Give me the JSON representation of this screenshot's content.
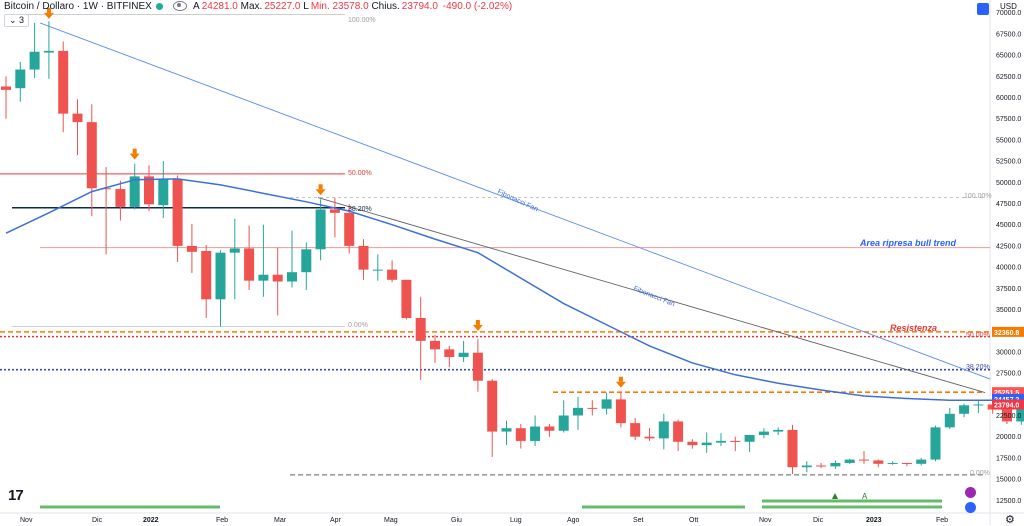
{
  "header": {
    "symbol": "Bitcoin / Dollaro · 1W · BITFINEX",
    "open_label": "A",
    "open": "24281.0",
    "high_label": "Max.",
    "high": "25227.0",
    "low_label": "L",
    "low": "Min. 23578.0",
    "close_label": "Chius.",
    "close": "23794.0",
    "change": "-490.0 (-2.02%)",
    "indicator_badge": "3"
  },
  "axis_unit": "USD",
  "price_axis_ticks": [
    "70000.0",
    "67500.0",
    "65000.0",
    "62500.0",
    "60000.0",
    "57500.0",
    "55000.0",
    "52500.0",
    "50000.0",
    "47500.0",
    "45000.0",
    "42500.0",
    "40000.0",
    "37500.0",
    "35000.0",
    "32500.0",
    "30000.0",
    "27500.0",
    "25000.0",
    "22500.0",
    "20000.0",
    "17500.0",
    "15000.0",
    "12500.0"
  ],
  "time_axis_labels": [
    "Nov",
    "Dic",
    "2022",
    "Feb",
    "Mar",
    "Apr",
    "Mag",
    "Giu",
    "Lug",
    "Ago",
    "Set",
    "Ott",
    "Nov",
    "Dic",
    "2023",
    "Feb"
  ],
  "price_badges": [
    {
      "text": "32360.8",
      "value": 32360.8,
      "color": "#f57c00"
    },
    {
      "text": "25251.5",
      "value": 25251.5,
      "color": "#ff5252"
    },
    {
      "text": "24457.2",
      "value": 24457.2,
      "color": "#2962ff"
    },
    {
      "text": "23794.0",
      "value": 23794.0,
      "color": "#f23645"
    }
  ],
  "annotations": {
    "fib_fan_1": "Fibonacci Fan",
    "fib_fan_2": "Fibonacci Fan",
    "area_ripresa": "Area ripresa bull trend",
    "resistenza": "Resistenza",
    "fib1_100": "100.00%",
    "fib1_50": "50.00%",
    "fib1_38": "38.20%",
    "fib1_0": "0.00%",
    "fib2_100": "100.00%",
    "fib2_50": "50.00%",
    "fib2_38": "38.20%",
    "fib2_0": "0.00%",
    "marker_a": "A"
  },
  "colors": {
    "up": "#26a69a",
    "down": "#ef5350",
    "ma": "#3d6fdc",
    "fan": "#5b8def",
    "resistance": "#f57c00",
    "green_bar": "#66bb6a"
  },
  "chart_data": {
    "type": "candlestick",
    "interval": "1W",
    "x_start": "2021-10-25",
    "x_end": "2023-02-20",
    "ylim": [
      11000,
      71500
    ],
    "candles": [
      {
        "o": 61300,
        "h": 62500,
        "l": 57500,
        "c": 60900
      },
      {
        "o": 61100,
        "h": 64200,
        "l": 59500,
        "c": 63300
      },
      {
        "o": 63300,
        "h": 68800,
        "l": 62300,
        "c": 65400
      },
      {
        "o": 65300,
        "h": 69000,
        "l": 62200,
        "c": 65500
      },
      {
        "o": 65500,
        "h": 66600,
        "l": 55900,
        "c": 58100
      },
      {
        "o": 58100,
        "h": 59800,
        "l": 53200,
        "c": 57100
      },
      {
        "o": 57100,
        "h": 59200,
        "l": 46000,
        "c": 49300
      },
      {
        "o": 49300,
        "h": 51800,
        "l": 41500,
        "c": 49200
      },
      {
        "o": 49200,
        "h": 50200,
        "l": 45500,
        "c": 47100
      },
      {
        "o": 47100,
        "h": 52200,
        "l": 46800,
        "c": 50700
      },
      {
        "o": 50700,
        "h": 52000,
        "l": 46600,
        "c": 47400
      },
      {
        "o": 47300,
        "h": 52500,
        "l": 45800,
        "c": 50400
      },
      {
        "o": 50400,
        "h": 50800,
        "l": 40600,
        "c": 42500
      },
      {
        "o": 42500,
        "h": 45100,
        "l": 39300,
        "c": 41800
      },
      {
        "o": 41900,
        "h": 42600,
        "l": 34000,
        "c": 36200
      },
      {
        "o": 36200,
        "h": 42000,
        "l": 33000,
        "c": 41700
      },
      {
        "o": 41700,
        "h": 45700,
        "l": 36200,
        "c": 42200
      },
      {
        "o": 42200,
        "h": 44900,
        "l": 37300,
        "c": 38400
      },
      {
        "o": 38400,
        "h": 45000,
        "l": 36500,
        "c": 39100
      },
      {
        "o": 39100,
        "h": 42300,
        "l": 34300,
        "c": 38300
      },
      {
        "o": 38300,
        "h": 44300,
        "l": 37600,
        "c": 39400
      },
      {
        "o": 39400,
        "h": 42900,
        "l": 37300,
        "c": 42100
      },
      {
        "o": 42100,
        "h": 48000,
        "l": 40800,
        "c": 46800
      },
      {
        "o": 46800,
        "h": 48200,
        "l": 43500,
        "c": 46400
      },
      {
        "o": 46400,
        "h": 47400,
        "l": 41600,
        "c": 42500
      },
      {
        "o": 42500,
        "h": 43300,
        "l": 38500,
        "c": 39700
      },
      {
        "o": 39700,
        "h": 41500,
        "l": 38400,
        "c": 39700
      },
      {
        "o": 39700,
        "h": 40800,
        "l": 38200,
        "c": 38500
      },
      {
        "o": 38500,
        "h": 38500,
        "l": 33800,
        "c": 34000
      },
      {
        "o": 34000,
        "h": 36500,
        "l": 26700,
        "c": 31300
      },
      {
        "o": 31300,
        "h": 32000,
        "l": 28700,
        "c": 30300
      },
      {
        "o": 30300,
        "h": 30700,
        "l": 28200,
        "c": 29400
      },
      {
        "o": 29400,
        "h": 31300,
        "l": 28800,
        "c": 29900
      },
      {
        "o": 29900,
        "h": 31500,
        "l": 25300,
        "c": 26600
      },
      {
        "o": 26600,
        "h": 26800,
        "l": 17600,
        "c": 20600
      },
      {
        "o": 20600,
        "h": 21900,
        "l": 19000,
        "c": 21000
      },
      {
        "o": 21000,
        "h": 21500,
        "l": 18600,
        "c": 19500
      },
      {
        "o": 19500,
        "h": 22500,
        "l": 18900,
        "c": 21200
      },
      {
        "o": 21200,
        "h": 21500,
        "l": 20000,
        "c": 20700
      },
      {
        "o": 20700,
        "h": 24300,
        "l": 20500,
        "c": 22500
      },
      {
        "o": 22500,
        "h": 24700,
        "l": 20800,
        "c": 23400
      },
      {
        "o": 23400,
        "h": 24300,
        "l": 22500,
        "c": 23300
      },
      {
        "o": 23300,
        "h": 25200,
        "l": 22600,
        "c": 24400
      },
      {
        "o": 24400,
        "h": 25200,
        "l": 21100,
        "c": 21600
      },
      {
        "o": 21600,
        "h": 22200,
        "l": 19600,
        "c": 20000
      },
      {
        "o": 20000,
        "h": 21000,
        "l": 19500,
        "c": 19800
      },
      {
        "o": 19800,
        "h": 22700,
        "l": 18500,
        "c": 21800
      },
      {
        "o": 21800,
        "h": 22000,
        "l": 18300,
        "c": 19400
      },
      {
        "o": 19400,
        "h": 19700,
        "l": 18600,
        "c": 19000
      },
      {
        "o": 19000,
        "h": 20500,
        "l": 18100,
        "c": 19300
      },
      {
        "o": 19300,
        "h": 20400,
        "l": 18900,
        "c": 19500
      },
      {
        "o": 19500,
        "h": 20000,
        "l": 18300,
        "c": 19400
      },
      {
        "o": 19400,
        "h": 20100,
        "l": 18200,
        "c": 20200
      },
      {
        "o": 20200,
        "h": 21000,
        "l": 19800,
        "c": 20600
      },
      {
        "o": 20600,
        "h": 21100,
        "l": 20200,
        "c": 20800
      },
      {
        "o": 20800,
        "h": 21400,
        "l": 15600,
        "c": 16400
      },
      {
        "o": 16400,
        "h": 17100,
        "l": 15800,
        "c": 16600
      },
      {
        "o": 16600,
        "h": 16900,
        "l": 16300,
        "c": 16500
      },
      {
        "o": 16500,
        "h": 17200,
        "l": 16200,
        "c": 16900
      },
      {
        "o": 16900,
        "h": 17400,
        "l": 16800,
        "c": 17300
      },
      {
        "o": 17300,
        "h": 18300,
        "l": 16800,
        "c": 17200
      },
      {
        "o": 17200,
        "h": 17300,
        "l": 16400,
        "c": 16800
      },
      {
        "o": 16800,
        "h": 17100,
        "l": 16700,
        "c": 16900
      },
      {
        "o": 16900,
        "h": 16900,
        "l": 16500,
        "c": 16800
      },
      {
        "o": 16800,
        "h": 17500,
        "l": 16600,
        "c": 17300
      },
      {
        "o": 17300,
        "h": 21300,
        "l": 17100,
        "c": 21100
      },
      {
        "o": 21100,
        "h": 23400,
        "l": 20900,
        "c": 22700
      },
      {
        "o": 22700,
        "h": 23900,
        "l": 22300,
        "c": 23700
      },
      {
        "o": 23700,
        "h": 24200,
        "l": 22800,
        "c": 23800
      },
      {
        "o": 23800,
        "h": 24000,
        "l": 22700,
        "c": 23200
      },
      {
        "o": 23200,
        "h": 23400,
        "l": 21500,
        "c": 21800
      },
      {
        "o": 21800,
        "h": 25100,
        "l": 21400,
        "c": 24300
      },
      {
        "o": 24300,
        "h": 25200,
        "l": 23600,
        "c": 23800
      }
    ],
    "moving_average": [
      [
        0,
        44000
      ],
      [
        3,
        46400
      ],
      [
        6,
        48900
      ],
      [
        9,
        50300
      ],
      [
        12,
        50400
      ],
      [
        15,
        49700
      ],
      [
        18,
        48700
      ],
      [
        21,
        47700
      ],
      [
        24,
        46600
      ],
      [
        27,
        45000
      ],
      [
        30,
        43300
      ],
      [
        33,
        41700
      ],
      [
        36,
        38700
      ],
      [
        39,
        35700
      ],
      [
        42,
        33200
      ],
      [
        45,
        30700
      ],
      [
        48,
        28700
      ],
      [
        51,
        27300
      ],
      [
        54,
        26300
      ],
      [
        57,
        25500
      ],
      [
        60,
        24800
      ],
      [
        63,
        24500
      ],
      [
        66,
        24300
      ],
      [
        69,
        24300
      ]
    ],
    "horizontal_levels": [
      {
        "price": 51000,
        "color": "#e53935",
        "style": "solid"
      },
      {
        "price": 47000,
        "color": "#0d2a4a",
        "style": "solid"
      },
      {
        "price": 42300,
        "color": "#ef9a9a",
        "style": "solid"
      },
      {
        "price": 32360.8,
        "color": "#f57c00",
        "style": "dashed"
      },
      {
        "price": 31800,
        "color": "#e53935",
        "style": "dotted"
      },
      {
        "price": 27900,
        "color": "#3949ab",
        "style": "dotted"
      },
      {
        "price": 25251.5,
        "color": "#f57c00",
        "style": "dashed"
      },
      {
        "price": 15500,
        "color": "#9e9e9e",
        "style": "dashed"
      }
    ],
    "signal_arrows": [
      {
        "index": 3,
        "price": 68800
      },
      {
        "index": 9,
        "price": 52200
      },
      {
        "index": 22,
        "price": 48000
      },
      {
        "index": 33,
        "price": 32000
      },
      {
        "index": 43,
        "price": 25300
      }
    ]
  }
}
